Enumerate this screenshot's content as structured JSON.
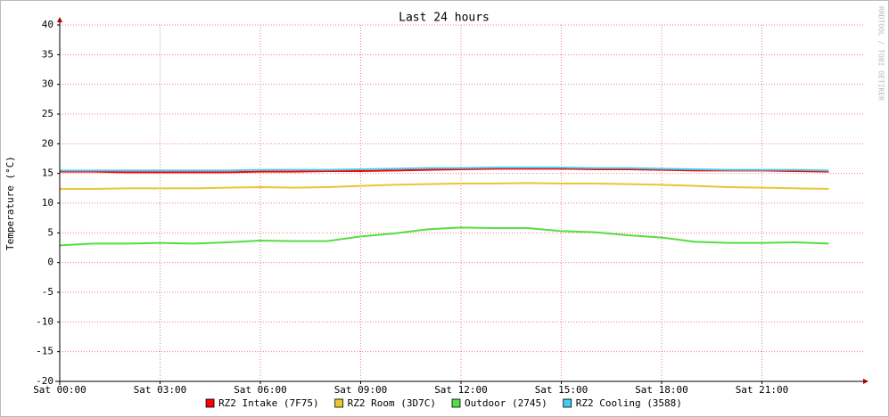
{
  "chart_data": {
    "type": "line",
    "title": "Last 24 hours",
    "y_label": "Temperature (°C)",
    "watermark": "RRDTOOL / TOBI OETIKER",
    "x": [
      "Sat 00:00",
      "Sat 01:00",
      "Sat 02:00",
      "Sat 03:00",
      "Sat 04:00",
      "Sat 05:00",
      "Sat 06:00",
      "Sat 07:00",
      "Sat 08:00",
      "Sat 09:00",
      "Sat 10:00",
      "Sat 11:00",
      "Sat 12:00",
      "Sat 13:00",
      "Sat 14:00",
      "Sat 15:00",
      "Sat 16:00",
      "Sat 17:00",
      "Sat 18:00",
      "Sat 19:00",
      "Sat 20:00",
      "Sat 21:00",
      "Sat 22:00",
      "Sat 23:00"
    ],
    "xticks": [
      "Sat 00:00",
      "Sat 03:00",
      "Sat 06:00",
      "Sat 09:00",
      "Sat 12:00",
      "Sat 15:00",
      "Sat 18:00",
      "Sat 21:00"
    ],
    "ylim": [
      -20,
      40
    ],
    "yticks": [
      -20,
      -15,
      -10,
      -5,
      0,
      5,
      10,
      15,
      20,
      25,
      30,
      35,
      40
    ],
    "grid": true,
    "series": [
      {
        "name": "RZ2 Intake (7F75)",
        "color": "#ff0000",
        "values": [
          15.3,
          15.3,
          15.2,
          15.2,
          15.2,
          15.2,
          15.3,
          15.3,
          15.4,
          15.4,
          15.5,
          15.6,
          15.7,
          15.8,
          15.8,
          15.8,
          15.7,
          15.7,
          15.6,
          15.5,
          15.5,
          15.5,
          15.4,
          15.3
        ]
      },
      {
        "name": "RZ2 Room (3D7C)",
        "color": "#eac534",
        "values": [
          12.4,
          12.4,
          12.5,
          12.5,
          12.5,
          12.6,
          12.7,
          12.6,
          12.7,
          12.9,
          13.1,
          13.2,
          13.3,
          13.3,
          13.4,
          13.3,
          13.3,
          13.2,
          13.1,
          12.9,
          12.7,
          12.6,
          12.5,
          12.4
        ]
      },
      {
        "name": "Outdoor (2745)",
        "color": "#55dd44",
        "values": [
          2.9,
          3.2,
          3.2,
          3.3,
          3.2,
          3.4,
          3.7,
          3.6,
          3.6,
          4.4,
          4.9,
          5.6,
          5.9,
          5.8,
          5.8,
          5.3,
          5.1,
          4.6,
          4.2,
          3.5,
          3.3,
          3.3,
          3.4,
          3.2
        ]
      },
      {
        "name": "RZ2 Cooling (3588)",
        "color": "#44ccee",
        "values": [
          15.5,
          15.5,
          15.5,
          15.5,
          15.5,
          15.5,
          15.6,
          15.6,
          15.6,
          15.7,
          15.8,
          15.9,
          15.9,
          16.0,
          16.0,
          16.0,
          15.9,
          15.9,
          15.8,
          15.7,
          15.6,
          15.6,
          15.6,
          15.5
        ]
      }
    ]
  }
}
